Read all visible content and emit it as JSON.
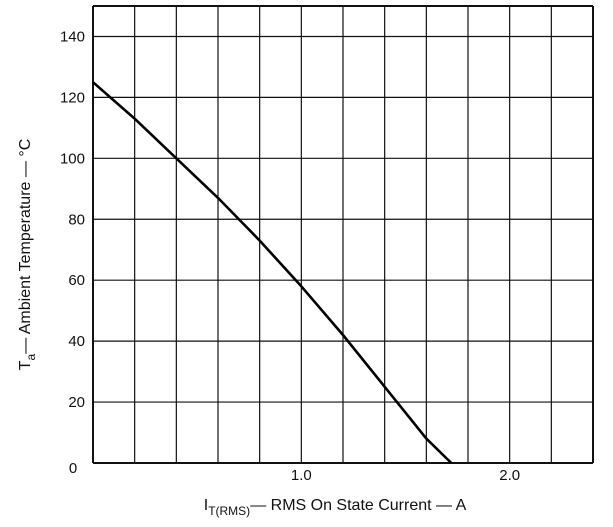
{
  "chart_data": {
    "type": "line",
    "title": "",
    "xlabel": {
      "prefix": "I",
      "subscript": "T(RMS)",
      "text": "— RMS On State Current — A"
    },
    "ylabel": {
      "prefix": "T",
      "subscript": "a",
      "text": "— Ambient Temperature — °C"
    },
    "xlim": [
      0,
      2.4
    ],
    "ylim": [
      0,
      150
    ],
    "grid": true,
    "x_gridlines": [
      0,
      0.2,
      0.4,
      0.6,
      0.8,
      1.0,
      1.2,
      1.4,
      1.6,
      1.8,
      2.0,
      2.2,
      2.4
    ],
    "y_gridlines": [
      0,
      20,
      40,
      60,
      80,
      100,
      120,
      140,
      150
    ],
    "xticks": [
      {
        "value": 0,
        "label": "0"
      },
      {
        "value": 1.0,
        "label": "1.0"
      },
      {
        "value": 2.0,
        "label": "2.0"
      }
    ],
    "yticks": [
      {
        "value": 20,
        "label": "20"
      },
      {
        "value": 40,
        "label": "40"
      },
      {
        "value": 60,
        "label": "60"
      },
      {
        "value": 80,
        "label": "80"
      },
      {
        "value": 100,
        "label": "100"
      },
      {
        "value": 120,
        "label": "120"
      },
      {
        "value": 140,
        "label": "140"
      }
    ],
    "series": [
      {
        "color": "#000000",
        "x": [
          0.0,
          0.2,
          0.4,
          0.6,
          0.8,
          1.0,
          1.2,
          1.4,
          1.6,
          1.72
        ],
        "y": [
          125,
          113,
          100,
          87,
          73,
          58,
          42,
          25,
          8,
          0
        ]
      }
    ]
  }
}
